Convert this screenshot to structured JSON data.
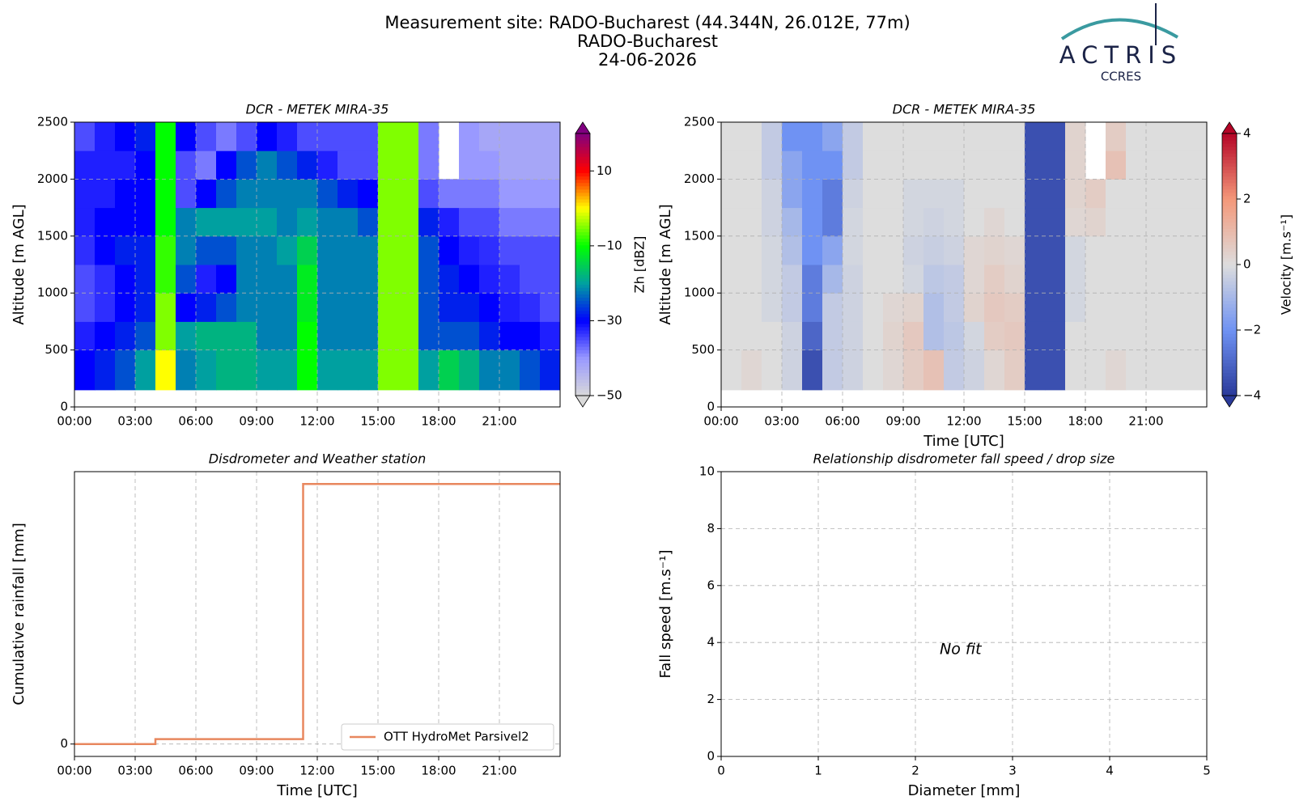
{
  "header": {
    "title": [
      "Measurement site: RADO-Bucharest (44.344N, 26.012E, 77m)",
      "RADO-Bucharest",
      "24-06-2026"
    ],
    "logo": {
      "name": "ACTRIS",
      "sub": "CCRES"
    }
  },
  "chart_data": [
    {
      "type": "heatmap",
      "title": "DCR - METEK MIRA-35",
      "ylabel": "Altitude [m AGL]",
      "xbins": [
        0,
        1,
        2,
        3,
        4,
        5,
        6,
        7,
        8,
        9,
        10,
        11,
        12,
        13,
        14,
        15,
        16,
        17,
        18,
        19,
        20,
        21,
        22,
        23,
        24
      ],
      "ybins": [
        150,
        500,
        750,
        1000,
        1250,
        1500,
        1750,
        2000,
        2250,
        2500
      ],
      "z": [
        [
          -30,
          -28,
          -25,
          -20,
          0,
          -22,
          -20,
          -18,
          -18,
          -20,
          -20,
          -10,
          -20,
          -20,
          -20,
          -5,
          -5,
          -20,
          -15,
          -18,
          -22,
          -22,
          -25,
          -28
        ],
        [
          -32,
          -30,
          -28,
          -25,
          -5,
          -20,
          -18,
          -18,
          -18,
          -22,
          -22,
          -10,
          -22,
          -22,
          -22,
          -5,
          -5,
          -25,
          -25,
          -25,
          -28,
          -30,
          -30,
          -32
        ],
        [
          -35,
          -33,
          -30,
          -28,
          -5,
          -30,
          -28,
          -25,
          -22,
          -22,
          -22,
          -12,
          -22,
          -22,
          -22,
          -5,
          -5,
          -25,
          -28,
          -28,
          -30,
          -32,
          -33,
          -35
        ],
        [
          -35,
          -33,
          -30,
          -28,
          -8,
          -25,
          -32,
          -30,
          -22,
          -22,
          -22,
          -12,
          -22,
          -22,
          -22,
          -5,
          -5,
          -25,
          -28,
          -30,
          -32,
          -33,
          -35,
          -35
        ],
        [
          -33,
          -30,
          -28,
          -28,
          -8,
          -22,
          -25,
          -25,
          -22,
          -22,
          -20,
          -15,
          -22,
          -22,
          -22,
          -5,
          -5,
          -25,
          -30,
          -32,
          -33,
          -35,
          -35,
          -35
        ],
        [
          -32,
          -30,
          -30,
          -30,
          -10,
          -22,
          -20,
          -20,
          -20,
          -20,
          -22,
          -20,
          -22,
          -22,
          -25,
          -5,
          -5,
          -28,
          -32,
          -35,
          -35,
          -38,
          -38,
          -38
        ],
        [
          -32,
          -32,
          -30,
          -30,
          -10,
          -35,
          -30,
          -25,
          -22,
          -22,
          -22,
          -22,
          -25,
          -28,
          -30,
          -5,
          -5,
          -35,
          -38,
          -38,
          -38,
          -40,
          -40,
          -40
        ],
        [
          -32,
          -32,
          -32,
          -30,
          -10,
          -35,
          -38,
          -30,
          -25,
          -22,
          -25,
          -28,
          -32,
          -35,
          -35,
          -5,
          -5,
          -38,
          null,
          -40,
          -40,
          -42,
          -42,
          -42
        ],
        [
          -35,
          -32,
          -30,
          -28,
          -10,
          -30,
          -35,
          -38,
          -35,
          -30,
          -32,
          -35,
          -35,
          -35,
          -35,
          -5,
          -5,
          -38,
          null,
          -40,
          -42,
          -42,
          -42,
          -42
        ]
      ],
      "colormap": [
        "#d9d9d9",
        "#9999ff",
        "#0000ff",
        "#00a0a0",
        "#00ff00",
        "#ffff00",
        "#ff0000",
        "#800080"
      ],
      "clim": [
        -50,
        20
      ],
      "cticks": [
        {
          "value": -50,
          "label": "−50"
        },
        {
          "value": -30,
          "label": "−30"
        },
        {
          "value": -10,
          "label": "−10"
        },
        10
      ],
      "clabel": "Zh [dBZ]",
      "xlim": [
        0,
        24
      ],
      "xticks": [
        {
          "value": 0,
          "label": "00:00"
        },
        {
          "value": 3,
          "label": "03:00"
        },
        {
          "value": 6,
          "label": "06:00"
        },
        {
          "value": 9,
          "label": "09:00"
        },
        {
          "value": 12,
          "label": "12:00"
        },
        {
          "value": 15,
          "label": "15:00"
        },
        {
          "value": 18,
          "label": "18:00"
        },
        {
          "value": 21,
          "label": "21:00"
        }
      ],
      "ylim": [
        0,
        2500
      ],
      "yticks": [
        0,
        500,
        1000,
        1500,
        2000,
        2500
      ],
      "grid": true
    },
    {
      "type": "heatmap",
      "title": "DCR - METEK MIRA-35",
      "ylabel": "Altitude [m AGL]",
      "xlabel": "Time [UTC]",
      "xbins": [
        0,
        1,
        2,
        3,
        4,
        5,
        6,
        7,
        8,
        9,
        10,
        11,
        12,
        13,
        14,
        15,
        16,
        17,
        18,
        19,
        20,
        21,
        22,
        23,
        24
      ],
      "ybins": [
        150,
        500,
        750,
        1000,
        1250,
        1500,
        1750,
        2000,
        2250,
        2500
      ],
      "z": [
        [
          0,
          0.2,
          0,
          -0.3,
          -3.5,
          -0.5,
          -0.3,
          0,
          0.2,
          0.5,
          0.8,
          -0.5,
          -0.3,
          0.2,
          0.5,
          -3.5,
          -3.5,
          0,
          0,
          0.2,
          0,
          0,
          0,
          0
        ],
        [
          0,
          0,
          0,
          -0.3,
          -3,
          -0.5,
          -0.3,
          0,
          0.3,
          0.6,
          -0.8,
          -0.6,
          -0.2,
          0.5,
          0.6,
          -3.5,
          -3.5,
          0,
          0,
          0,
          0,
          0,
          0,
          0
        ],
        [
          0,
          0,
          -0.2,
          -0.5,
          -2.5,
          -0.5,
          -0.3,
          0,
          0.2,
          0.3,
          -0.8,
          -0.5,
          0.3,
          0.6,
          0.5,
          -3.5,
          -3.5,
          -0.2,
          0,
          0,
          0,
          0,
          0,
          0
        ],
        [
          0,
          0,
          -0.2,
          -0.5,
          -2.5,
          -1,
          -0.3,
          0,
          0,
          -0.2,
          -0.6,
          -0.5,
          0.2,
          0.5,
          0.3,
          -3.5,
          -3.5,
          -0.2,
          0,
          0,
          0,
          0,
          0,
          0
        ],
        [
          0,
          0,
          -0.2,
          -0.8,
          -2,
          -1.5,
          -0.2,
          0,
          0,
          -0.3,
          -0.4,
          -0.3,
          0.2,
          0.3,
          0.2,
          -3.5,
          -3.5,
          -0.2,
          0,
          0,
          0,
          0,
          0,
          0
        ],
        [
          0,
          0,
          -0.3,
          -1,
          -2,
          -2.5,
          -0.2,
          0,
          0,
          -0.2,
          -0.3,
          -0.2,
          0,
          0.2,
          0,
          -3.5,
          -3.5,
          0.2,
          0.3,
          0,
          0,
          0,
          0,
          0
        ],
        [
          0,
          0,
          -0.3,
          -1.5,
          -2,
          -2.5,
          -0.3,
          0,
          0,
          -0.2,
          -0.2,
          -0.2,
          0,
          0,
          0,
          -3.5,
          -3.5,
          0.3,
          0.5,
          0,
          0,
          0,
          0,
          0
        ],
        [
          0,
          0,
          -0.5,
          -1.5,
          -2,
          -2,
          -0.5,
          0,
          0,
          0,
          0,
          0,
          0,
          0,
          0,
          -3.5,
          -3.5,
          0.3,
          null,
          0.8,
          0,
          0,
          0,
          0
        ],
        [
          0,
          0,
          -0.5,
          -2,
          -2,
          -1.5,
          -0.5,
          0,
          0,
          0,
          0,
          0,
          0,
          0,
          0,
          -3.5,
          -3.5,
          0.3,
          null,
          0.5,
          0,
          0,
          0,
          0
        ]
      ],
      "colormap": [
        "#2a3a9a",
        "#6f92f3",
        "#dddddd",
        "#f4987a",
        "#b40426"
      ],
      "clim": [
        -4,
        4
      ],
      "cticks": [
        {
          "value": -4,
          "label": "−4"
        },
        {
          "value": -2,
          "label": "−2"
        },
        0,
        2,
        4
      ],
      "clabel": "Velocity [m.s⁻¹]",
      "xlim": [
        0,
        24
      ],
      "xticks": [
        {
          "value": 0,
          "label": "00:00"
        },
        {
          "value": 3,
          "label": "03:00"
        },
        {
          "value": 6,
          "label": "06:00"
        },
        {
          "value": 9,
          "label": "09:00"
        },
        {
          "value": 12,
          "label": "12:00"
        },
        {
          "value": 15,
          "label": "15:00"
        },
        {
          "value": 18,
          "label": "18:00"
        },
        {
          "value": 21,
          "label": "21:00"
        }
      ],
      "ylim": [
        0,
        2500
      ],
      "yticks": [
        0,
        500,
        1000,
        1500,
        2000,
        2500
      ],
      "grid": true
    },
    {
      "type": "line",
      "title": "Disdrometer and Weather station",
      "ylabel": "Cumulative rainfall [mm]",
      "xlabel": "Time [UTC]",
      "x": [
        0,
        4,
        4,
        11.3,
        11.3,
        24
      ],
      "series": [
        {
          "name": "OTT HydroMet Parsivel2",
          "color": "#e8875e",
          "values": [
            0,
            0,
            0.02,
            0.02,
            1.05,
            1.05
          ]
        }
      ],
      "legend": "lower right",
      "xlim": [
        0,
        24
      ],
      "xticks": [
        {
          "value": 0,
          "label": "00:00"
        },
        {
          "value": 3,
          "label": "03:00"
        },
        {
          "value": 6,
          "label": "06:00"
        },
        {
          "value": 9,
          "label": "09:00"
        },
        {
          "value": 12,
          "label": "12:00"
        },
        {
          "value": 15,
          "label": "15:00"
        },
        {
          "value": 18,
          "label": "18:00"
        },
        {
          "value": 21,
          "label": "21:00"
        }
      ],
      "ylim": [
        -0.05,
        1.1
      ],
      "yticks": [
        0
      ],
      "grid": true
    },
    {
      "type": "scatter",
      "title": "Relationship disdrometer fall speed / drop size",
      "ylabel": "Fall speed [m.s⁻¹]",
      "xlabel": "Diameter [mm]",
      "annotation": "No fit",
      "series": [],
      "xlim": [
        0,
        5
      ],
      "xticks": [
        0,
        1,
        2,
        3,
        4,
        5
      ],
      "ylim": [
        0,
        10
      ],
      "yticks": [
        0,
        2,
        4,
        6,
        8,
        10
      ],
      "grid": true
    }
  ]
}
